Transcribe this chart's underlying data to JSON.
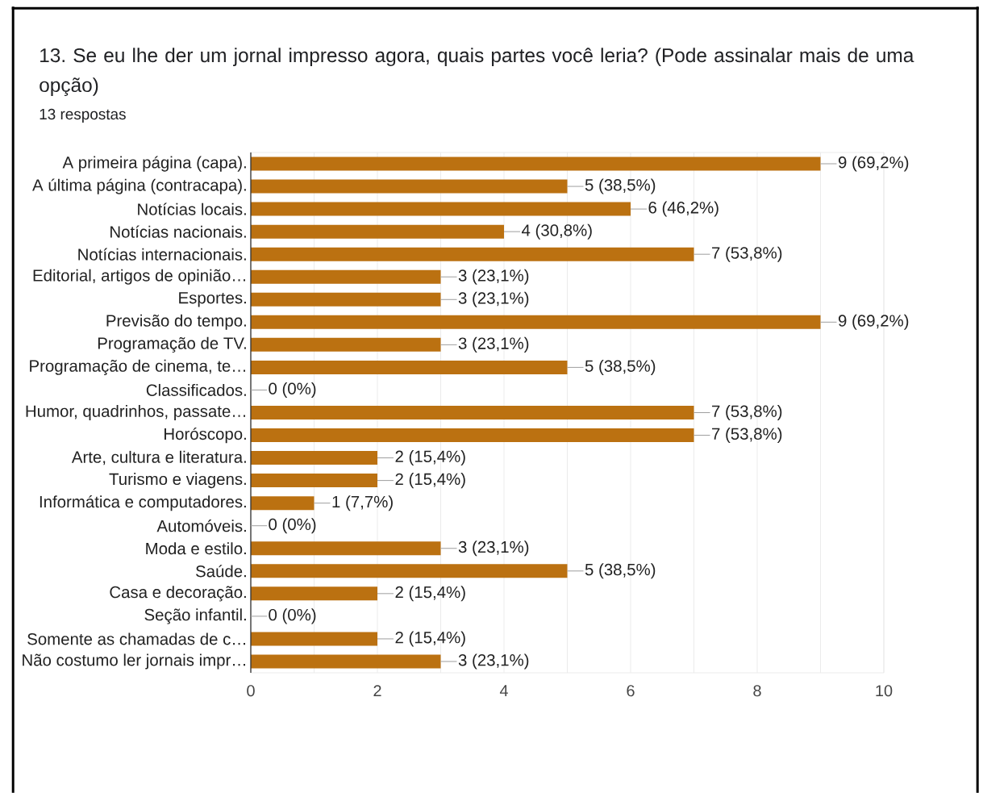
{
  "chart_data": {
    "type": "bar",
    "orientation": "horizontal",
    "title": "13. Se eu lhe der um jornal impresso agora, quais partes você leria? (Pode assinalar mais de uma opção)",
    "subtitle": "13 respostas",
    "categories": [
      "A primeira página (capa).",
      "A última página (contracapa).",
      "Notícias locais.",
      "Notícias nacionais.",
      "Notícias internacionais.",
      "Editorial, artigos de opinião…",
      "Esportes.",
      "Previsão do tempo.",
      "Programação de TV.",
      "Programação de cinema, te…",
      "Classificados.",
      "Humor, quadrinhos, passate…",
      "Horóscopo.",
      "Arte, cultura e literatura.",
      "Turismo e viagens.",
      "Informática e computadores.",
      "Automóveis.",
      "Moda e estilo.",
      "Saúde.",
      "Casa e decoração.",
      "Seção infantil.",
      "Somente as chamadas de c…",
      "Não costumo ler jornais impr…"
    ],
    "values": [
      9,
      5,
      6,
      4,
      7,
      3,
      3,
      9,
      3,
      5,
      0,
      7,
      7,
      2,
      2,
      1,
      0,
      3,
      5,
      2,
      0,
      2,
      3
    ],
    "value_labels": [
      "9 (69,2%)",
      "5 (38,5%)",
      "6 (46,2%)",
      "4 (30,8%)",
      "7 (53,8%)",
      "3 (23,1%)",
      "3 (23,1%)",
      "9 (69,2%)",
      "3 (23,1%)",
      "5 (38,5%)",
      "0 (0%)",
      "7 (53,8%)",
      "7 (53,8%)",
      "2 (15,4%)",
      "2 (15,4%)",
      "1 (7,7%)",
      "0 (0%)",
      "3 (23,1%)",
      "5 (38,5%)",
      "2 (15,4%)",
      "0 (0%)",
      "2 (15,4%)",
      "3 (23,1%)"
    ],
    "color": "#bb7111",
    "xlim": [
      0,
      10
    ],
    "xticks": [
      0,
      {
        "value": 1,
        "label": null
      },
      2,
      {
        "value": 3,
        "label": null
      },
      4,
      {
        "value": 5,
        "label": null
      },
      6,
      {
        "value": 7,
        "label": null
      },
      8,
      {
        "value": 9,
        "label": null
      },
      10
    ],
    "grid": "x"
  }
}
